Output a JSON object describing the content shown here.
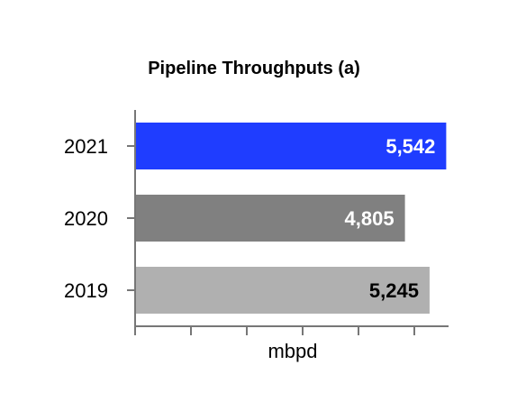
{
  "chart_data": {
    "type": "bar",
    "orientation": "horizontal",
    "title": "Pipeline Throughputs (a)",
    "xlabel": "mbpd",
    "ylabel": "",
    "categories": [
      "2021",
      "2020",
      "2019"
    ],
    "values": [
      5542,
      4805,
      5245
    ],
    "value_labels": [
      "5,542",
      "4,805",
      "5,245"
    ],
    "bar_colors": [
      "#1f3dff",
      "#808080",
      "#b0b0b0"
    ],
    "label_colors": [
      "#ffffff",
      "#ffffff",
      "#000000"
    ],
    "xlim": [
      0,
      5600
    ],
    "grid": false,
    "legend": "none"
  }
}
